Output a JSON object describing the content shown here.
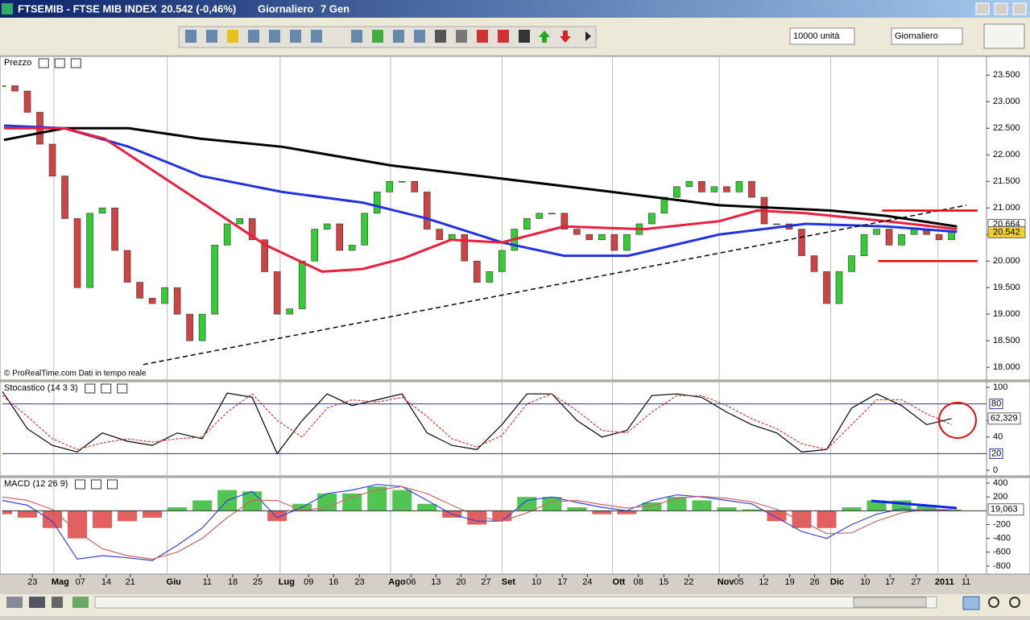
{
  "window": {
    "symbol": "FTSEMIB - FTSE MIB INDEX",
    "quote": "20.542 (-0,46%)",
    "period": "Giornaliero",
    "date": "7 Gen"
  },
  "toolbar": {
    "quantity": "10000 unità",
    "period": "Giornaliero"
  },
  "chart_data": [
    {
      "type": "candlestick",
      "title": "Prezzo",
      "credit": "© ProRealTime.com  Dati in tempo reale",
      "xlim": [
        0,
        197
      ],
      "ylim": [
        17.79,
        23.58
      ],
      "yticks": [
        {
          "value": 18,
          "label": "18.000"
        },
        {
          "value": 18.5,
          "label": "18.500"
        },
        {
          "value": 19,
          "label": "19.000"
        },
        {
          "value": 19.5,
          "label": "19.500"
        },
        {
          "value": 20,
          "label": "20.000"
        },
        {
          "value": 20.5,
          "label": "20.500"
        },
        {
          "value": 21,
          "label": "21.000"
        },
        {
          "value": 21.5,
          "label": "21.500"
        },
        {
          "value": 22,
          "label": "22.000"
        },
        {
          "value": 22.5,
          "label": "22.500"
        },
        {
          "value": 23,
          "label": "23.000"
        },
        {
          "value": 23.5,
          "label": "23.500"
        }
      ],
      "up_color": "#33cc33",
      "down_color": "#cc4444",
      "x": [
        0,
        2.5,
        5,
        7.5,
        10,
        12.5,
        15,
        17.5,
        20,
        22.5,
        25,
        27.5,
        30,
        32.5,
        35,
        37.5,
        40,
        42.5,
        45,
        47.5,
        50,
        52.5,
        55,
        57.5,
        60,
        62.5,
        65,
        67.5,
        70,
        72.5,
        75,
        77.5,
        80,
        82.5,
        85,
        87.5,
        90,
        92.5,
        95,
        97.5,
        100,
        102.5,
        105,
        107.5,
        110,
        112.5,
        115,
        117.5,
        120,
        122.5,
        125,
        127.5,
        130,
        132.5,
        135,
        137.5,
        140,
        142.5,
        145,
        147.5,
        150,
        152.5,
        155,
        157.5,
        160,
        162.5,
        165,
        167.5,
        170,
        172.5,
        175,
        177.5,
        180,
        182.5,
        185,
        187.5,
        190
      ],
      "values": [
        23.3,
        23.2,
        22.8,
        22.2,
        21.6,
        20.8,
        19.5,
        20.9,
        21.0,
        20.2,
        19.6,
        19.3,
        19.2,
        19.5,
        19.0,
        18.5,
        19.0,
        20.3,
        20.7,
        20.8,
        20.4,
        19.8,
        19.0,
        19.1,
        20.0,
        20.6,
        20.7,
        20.2,
        20.3,
        20.9,
        21.3,
        21.5,
        21.5,
        21.3,
        20.6,
        20.4,
        20.5,
        20.0,
        19.6,
        19.8,
        20.2,
        20.6,
        20.8,
        20.9,
        20.9,
        20.6,
        20.5,
        20.4,
        20.5,
        20.2,
        20.5,
        20.7,
        20.9,
        21.2,
        21.4,
        21.5,
        21.3,
        21.4,
        21.3,
        21.5,
        21.2,
        20.7,
        20.7,
        20.6,
        20.1,
        19.8,
        19.2,
        19.8,
        20.1,
        20.5,
        20.6,
        20.3,
        20.5,
        20.6,
        20.5,
        20.4,
        20.542
      ],
      "value_labels": {
        "190": "20.542"
      },
      "moving_averages": [
        {
          "color": "#000000",
          "x": [
            0.3,
            12.4,
            25.3,
            39.8,
            56,
            77.7,
            100,
            122.1,
            143.5,
            165.8,
            177,
            191.1
          ],
          "values": [
            22.28,
            22.5,
            22.5,
            22.3,
            22.15,
            21.8,
            21.55,
            21.3,
            21.05,
            20.95,
            20.85,
            20.65
          ]
        },
        {
          "color": "#2233dd",
          "x": [
            0.3,
            12.4,
            25.3,
            39.8,
            56,
            72.1,
            85,
            100,
            112.4,
            125.3,
            143.5,
            160.8,
            177,
            191.1
          ],
          "values": [
            22.55,
            22.5,
            22.15,
            21.6,
            21.3,
            21.1,
            20.8,
            20.35,
            20.1,
            20.1,
            20.5,
            20.7,
            20.65,
            20.55
          ]
        },
        {
          "color": "#e8203c",
          "x": [
            0.3,
            12.4,
            20.5,
            31.8,
            41.5,
            52.7,
            64.0,
            72.1,
            80.2,
            89.8,
            100,
            112.4,
            128.5,
            143.5,
            151.1,
            160.8,
            177,
            191.1
          ],
          "values": [
            22.5,
            22.5,
            22.3,
            21.6,
            21.0,
            20.3,
            19.8,
            19.85,
            20.05,
            20.4,
            20.35,
            20.65,
            20.6,
            20.75,
            20.95,
            20.9,
            20.75,
            20.6
          ]
        }
      ],
      "ma_label": "20.664",
      "trendlines": [
        {
          "color": "#000000",
          "dashed": true,
          "x": [
            28.2,
            193
          ],
          "values": [
            18.05,
            21.05
          ]
        },
        {
          "color": "#ee0000",
          "dashed": false,
          "x": [
            176.1,
            195.2
          ],
          "values": [
            20.95,
            20.95
          ]
        },
        {
          "color": "#ee0000",
          "dashed": false,
          "x": [
            175.3,
            195.2
          ],
          "values": [
            20.0,
            20.0
          ]
        }
      ]
    },
    {
      "type": "line",
      "title": "Stocastico (14 3 3)",
      "xlim": [
        0,
        197
      ],
      "ylim": [
        -5.8,
        106.8
      ],
      "yticks": [
        0,
        40,
        60,
        100
      ],
      "levels": [
        20,
        80
      ],
      "level_color": "#333399",
      "x": [
        0,
        5,
        10,
        15,
        20,
        25,
        30,
        35,
        40,
        45,
        50,
        55,
        60,
        65,
        70,
        75,
        80,
        85,
        90,
        95,
        100,
        105,
        110,
        115,
        120,
        125,
        130,
        135,
        140,
        145,
        150,
        155,
        160,
        165,
        170,
        175,
        180,
        185,
        190
      ],
      "series": [
        {
          "color": "#000000",
          "values": [
            95,
            50,
            30,
            22,
            45,
            35,
            30,
            45,
            38,
            93,
            88,
            20,
            60,
            92,
            78,
            85,
            92,
            45,
            30,
            25,
            55,
            92,
            92,
            60,
            40,
            48,
            90,
            92,
            88,
            70,
            55,
            45,
            22,
            25,
            75,
            92,
            78,
            55,
            62.329
          ],
          "value_labels": {
            "38": "62,329"
          }
        },
        {
          "color": "#dd3333",
          "values": [
            90,
            65,
            38,
            25,
            33,
            38,
            34,
            38,
            40,
            70,
            92,
            60,
            40,
            75,
            85,
            82,
            88,
            65,
            38,
            28,
            42,
            80,
            92,
            72,
            48,
            45,
            70,
            90,
            90,
            78,
            62,
            50,
            32,
            25,
            55,
            85,
            85,
            68,
            55
          ]
        }
      ]
    },
    {
      "type": "macd",
      "title": "MACD (12 26 9)",
      "xlim": [
        0,
        197
      ],
      "ylim": [
        -905,
        470
      ],
      "yticks": [
        400,
        200,
        -200,
        -400,
        -600,
        -800
      ],
      "xticks": [
        {
          "value": 6,
          "label": "23"
        },
        {
          "value": 15.6,
          "label": "07"
        },
        {
          "value": 20.8,
          "label": "14"
        },
        {
          "value": 25.6,
          "label": "21"
        },
        {
          "value": 41,
          "label": "11"
        },
        {
          "value": 46.1,
          "label": "18"
        },
        {
          "value": 51.1,
          "label": "25"
        },
        {
          "value": 61.3,
          "label": "09"
        },
        {
          "value": 66.3,
          "label": "16"
        },
        {
          "value": 71.5,
          "label": "23"
        },
        {
          "value": 81.8,
          "label": "06"
        },
        {
          "value": 86.8,
          "label": "13"
        },
        {
          "value": 91.8,
          "label": "20"
        },
        {
          "value": 96.8,
          "label": "27"
        },
        {
          "value": 106.9,
          "label": "10"
        },
        {
          "value": 112.1,
          "label": "17"
        },
        {
          "value": 117.1,
          "label": "24"
        },
        {
          "value": 127.3,
          "label": "08"
        },
        {
          "value": 132.4,
          "label": "15"
        },
        {
          "value": 137.4,
          "label": "22"
        },
        {
          "value": 147.4,
          "label": "05"
        },
        {
          "value": 152.4,
          "label": "12"
        },
        {
          "value": 157.6,
          "label": "19"
        },
        {
          "value": 162.6,
          "label": "26"
        },
        {
          "value": 172.7,
          "label": "10"
        },
        {
          "value": 177.7,
          "label": "17"
        },
        {
          "value": 182.9,
          "label": "27"
        },
        {
          "value": 192.9,
          "label": "11"
        }
      ],
      "month_xticks": [
        {
          "value": 10.3,
          "label": "Mag"
        },
        {
          "value": 33,
          "label": "Giu"
        },
        {
          "value": 55.6,
          "label": "Lug"
        },
        {
          "value": 77.7,
          "label": "Ago"
        },
        {
          "value": 100,
          "label": "Set"
        },
        {
          "value": 122.1,
          "label": "Ott"
        },
        {
          "value": 143.5,
          "label": "Nov"
        },
        {
          "value": 165.8,
          "label": "Dic"
        },
        {
          "value": 187.3,
          "label": "2011"
        }
      ],
      "x": [
        0,
        5,
        10,
        15,
        20,
        25,
        30,
        35,
        40,
        45,
        50,
        55,
        60,
        65,
        70,
        75,
        80,
        85,
        90,
        95,
        100,
        105,
        110,
        115,
        120,
        125,
        130,
        135,
        140,
        145,
        150,
        155,
        160,
        165,
        170,
        175,
        180,
        185,
        190
      ],
      "histogram": [
        -50,
        -100,
        -250,
        -400,
        -250,
        -150,
        -100,
        50,
        150,
        300,
        280,
        -150,
        100,
        250,
        250,
        350,
        300,
        100,
        -100,
        -200,
        -150,
        200,
        200,
        50,
        -50,
        -50,
        120,
        200,
        150,
        50,
        20,
        -150,
        -250,
        -250,
        50,
        150,
        150,
        80,
        19.063
      ],
      "histogram_labels": {
        "38": "19,063"
      },
      "pos_color": "#33bb33",
      "neg_color": "#dd4444",
      "series": [
        {
          "color": "#3344dd",
          "values": [
            150,
            80,
            -150,
            -700,
            -650,
            -680,
            -720,
            -500,
            -250,
            150,
            280,
            -100,
            50,
            250,
            300,
            380,
            350,
            150,
            -50,
            -150,
            -150,
            150,
            200,
            120,
            50,
            0,
            150,
            230,
            200,
            150,
            100,
            -100,
            -300,
            -400,
            -200,
            -50,
            30,
            0,
            10
          ]
        },
        {
          "color": "#cc6666",
          "values": [
            200,
            150,
            20,
            -300,
            -550,
            -650,
            -700,
            -600,
            -400,
            -100,
            150,
            150,
            0,
            50,
            200,
            300,
            350,
            250,
            80,
            -80,
            -150,
            -30,
            130,
            150,
            90,
            40,
            70,
            180,
            210,
            180,
            130,
            20,
            -150,
            -330,
            -320,
            -150,
            -30,
            20,
            15
          ]
        }
      ]
    }
  ]
}
